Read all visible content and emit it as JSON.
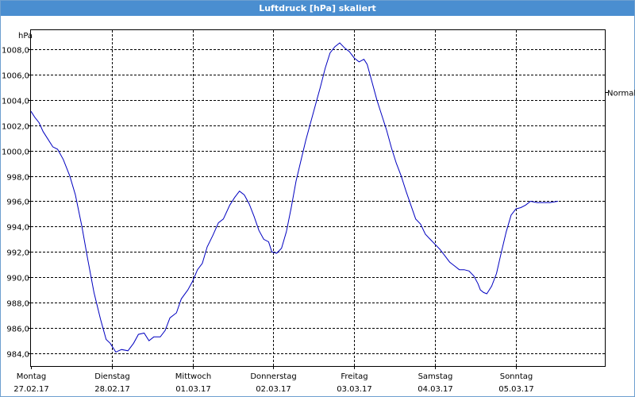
{
  "window": {
    "title": "Luftdruck [hPa] skaliert"
  },
  "chart_data": {
    "type": "line",
    "title": "Luftdruck [hPa] skaliert",
    "ylabel": "hPa",
    "xlabel": "",
    "ylim": [
      983.0,
      1009.5
    ],
    "xlim": [
      0,
      7.1
    ],
    "grid": true,
    "legend": "none",
    "y_ticks": [
      984,
      986,
      988,
      990,
      992,
      994,
      996,
      998,
      1000,
      1002,
      1004,
      1006,
      1008
    ],
    "y_tick_labels": [
      "984,0",
      "986,0",
      "988,0",
      "990,0",
      "992,0",
      "994,0",
      "996,0",
      "998,0",
      "1000,0",
      "1002,0",
      "1004,0",
      "1006,0",
      "1008,0"
    ],
    "x_ticks": [
      {
        "day": "Montag",
        "date": "27.02.17"
      },
      {
        "day": "Dienstag",
        "date": "28.02.17"
      },
      {
        "day": "Mittwoch",
        "date": "01.03.17"
      },
      {
        "day": "Donnerstag",
        "date": "02.03.17"
      },
      {
        "day": "Freitag",
        "date": "03.03.17"
      },
      {
        "day": "Samstag",
        "date": "04.03.17"
      },
      {
        "day": "Sonntag",
        "date": "05.03.17"
      }
    ],
    "reference_line": {
      "label": "Normal",
      "value": 1004.6
    },
    "series": [
      {
        "color": "#0000c0",
        "points": [
          [
            0.0,
            1003.1
          ],
          [
            0.05,
            1002.6
          ],
          [
            0.1,
            1002.2
          ],
          [
            0.15,
            1001.5
          ],
          [
            0.2,
            1001.0
          ],
          [
            0.27,
            1000.3
          ],
          [
            0.33,
            1000.1
          ],
          [
            0.4,
            999.3
          ],
          [
            0.48,
            998.0
          ],
          [
            0.55,
            996.5
          ],
          [
            0.63,
            994.0
          ],
          [
            0.7,
            991.5
          ],
          [
            0.78,
            988.8
          ],
          [
            0.86,
            986.7
          ],
          [
            0.93,
            985.1
          ],
          [
            0.98,
            984.8
          ],
          [
            1.05,
            984.1
          ],
          [
            1.12,
            984.3
          ],
          [
            1.2,
            984.2
          ],
          [
            1.27,
            984.8
          ],
          [
            1.33,
            985.5
          ],
          [
            1.4,
            985.6
          ],
          [
            1.46,
            985.0
          ],
          [
            1.52,
            985.3
          ],
          [
            1.6,
            985.3
          ],
          [
            1.66,
            985.8
          ],
          [
            1.72,
            986.8
          ],
          [
            1.8,
            987.2
          ],
          [
            1.86,
            988.3
          ],
          [
            1.94,
            989.0
          ],
          [
            2.0,
            989.7
          ],
          [
            2.06,
            990.6
          ],
          [
            2.12,
            991.1
          ],
          [
            2.18,
            992.4
          ],
          [
            2.25,
            993.3
          ],
          [
            2.32,
            994.3
          ],
          [
            2.38,
            994.6
          ],
          [
            2.46,
            995.7
          ],
          [
            2.52,
            996.3
          ],
          [
            2.58,
            996.8
          ],
          [
            2.64,
            996.5
          ],
          [
            2.7,
            995.8
          ],
          [
            2.76,
            994.8
          ],
          [
            2.82,
            993.7
          ],
          [
            2.88,
            993.0
          ],
          [
            2.94,
            992.8
          ],
          [
            2.98,
            992.0
          ],
          [
            3.04,
            991.9
          ],
          [
            3.1,
            992.3
          ],
          [
            3.16,
            993.6
          ],
          [
            3.22,
            995.5
          ],
          [
            3.28,
            997.6
          ],
          [
            3.34,
            999.2
          ],
          [
            3.4,
            1000.8
          ],
          [
            3.46,
            1002.2
          ],
          [
            3.52,
            1003.6
          ],
          [
            3.58,
            1005.0
          ],
          [
            3.64,
            1006.5
          ],
          [
            3.7,
            1007.7
          ],
          [
            3.76,
            1008.2
          ],
          [
            3.82,
            1008.5
          ],
          [
            3.88,
            1008.1
          ],
          [
            3.94,
            1007.8
          ],
          [
            4.0,
            1007.3
          ],
          [
            4.06,
            1007.0
          ],
          [
            4.12,
            1007.2
          ],
          [
            4.16,
            1006.8
          ],
          [
            4.22,
            1005.4
          ],
          [
            4.28,
            1004.0
          ],
          [
            4.34,
            1002.8
          ],
          [
            4.4,
            1001.6
          ],
          [
            4.46,
            1000.2
          ],
          [
            4.52,
            999.0
          ],
          [
            4.58,
            998.0
          ],
          [
            4.64,
            996.8
          ],
          [
            4.7,
            995.7
          ],
          [
            4.76,
            994.6
          ],
          [
            4.82,
            994.2
          ],
          [
            4.88,
            993.4
          ],
          [
            4.94,
            993.0
          ],
          [
            5.0,
            992.6
          ],
          [
            5.06,
            992.2
          ],
          [
            5.12,
            991.7
          ],
          [
            5.18,
            991.2
          ],
          [
            5.24,
            990.9
          ],
          [
            5.3,
            990.6
          ],
          [
            5.36,
            990.6
          ],
          [
            5.42,
            990.5
          ],
          [
            5.48,
            990.1
          ],
          [
            5.53,
            989.5
          ],
          [
            5.56,
            989.0
          ],
          [
            5.6,
            988.8
          ],
          [
            5.64,
            988.7
          ],
          [
            5.7,
            989.3
          ],
          [
            5.76,
            990.3
          ],
          [
            5.82,
            992.0
          ],
          [
            5.88,
            993.6
          ],
          [
            5.94,
            994.9
          ],
          [
            6.0,
            995.4
          ],
          [
            6.06,
            995.5
          ],
          [
            6.12,
            995.7
          ],
          [
            6.18,
            996.0
          ],
          [
            6.26,
            995.9
          ],
          [
            6.34,
            995.9
          ],
          [
            6.42,
            995.9
          ],
          [
            6.52,
            996.0
          ]
        ]
      }
    ]
  }
}
